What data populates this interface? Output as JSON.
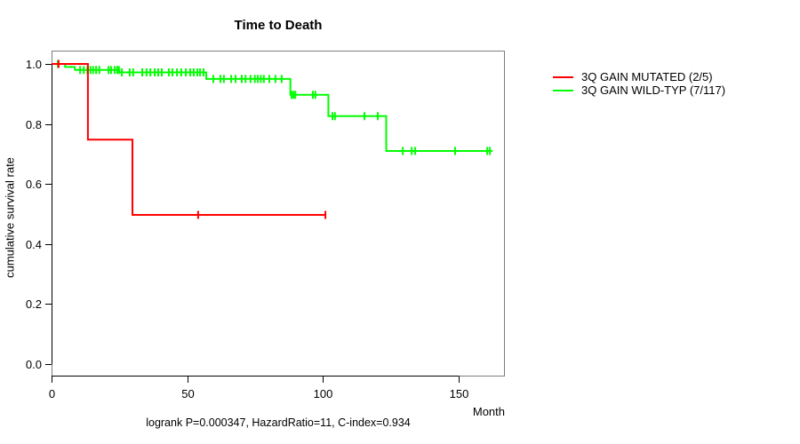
{
  "chart_data": {
    "type": "line",
    "subtype": "kaplan-meier-step",
    "title": "Time to Death",
    "xlabel": "Month",
    "ylabel": "cumulative survival rate",
    "footer": "logrank P=0.000347, HazardRatio=11, C-index=0.934",
    "x_ticks": [
      "0",
      "50",
      "100",
      "150"
    ],
    "x_tick_values": [
      0,
      50,
      100,
      150
    ],
    "y_ticks": [
      "0.0",
      "0.2",
      "0.4",
      "0.6",
      "0.8",
      "1.0"
    ],
    "y_tick_values": [
      0.0,
      0.2,
      0.4,
      0.6,
      0.8,
      1.0
    ],
    "xlim": [
      0,
      167
    ],
    "ylim": [
      0.0,
      1.0
    ],
    "grid": false,
    "legend_position": "right-outside",
    "legend": [
      {
        "label": "3Q GAIN MUTATED (2/5)",
        "color": "#ff0000"
      },
      {
        "label": "3Q GAIN WILD-TYP (7/117)",
        "color": "#00ff00"
      }
    ],
    "series": [
      {
        "name": "3Q GAIN MUTATED (2/5)",
        "color": "#ff0000",
        "steps": [
          [
            0,
            1.0
          ],
          [
            13.4,
            0.748
          ],
          [
            29.8,
            0.497
          ]
        ],
        "end": 100.9,
        "censors": [
          [
            2.6,
            1.0
          ],
          [
            54.0,
            0.497
          ],
          [
            100.9,
            0.497
          ]
        ]
      },
      {
        "name": "3Q GAIN WILD-TYP (7/117)",
        "color": "#00ff00",
        "steps": [
          [
            0,
            1.0
          ],
          [
            5.0,
            0.99
          ],
          [
            8.6,
            0.98
          ],
          [
            25.0,
            0.972
          ],
          [
            57.0,
            0.95
          ],
          [
            88.0,
            0.897
          ],
          [
            102.0,
            0.826
          ],
          [
            123.3,
            0.71
          ]
        ],
        "end": 162.5,
        "censors": [
          [
            2.3,
            1.0
          ],
          [
            10.5,
            0.98
          ],
          [
            11.9,
            0.98
          ],
          [
            13.2,
            0.98
          ],
          [
            14.3,
            0.98
          ],
          [
            15.3,
            0.98
          ],
          [
            16.4,
            0.98
          ],
          [
            17.6,
            0.98
          ],
          [
            21.0,
            0.98
          ],
          [
            21.9,
            0.98
          ],
          [
            23.3,
            0.98
          ],
          [
            24.2,
            0.98
          ],
          [
            24.8,
            0.98
          ],
          [
            25.9,
            0.972
          ],
          [
            28.8,
            0.972
          ],
          [
            30.1,
            0.972
          ],
          [
            33.4,
            0.972
          ],
          [
            35.0,
            0.972
          ],
          [
            36.4,
            0.972
          ],
          [
            38.0,
            0.972
          ],
          [
            39.3,
            0.972
          ],
          [
            40.6,
            0.972
          ],
          [
            43.2,
            0.972
          ],
          [
            44.5,
            0.972
          ],
          [
            46.2,
            0.972
          ],
          [
            47.8,
            0.972
          ],
          [
            49.5,
            0.972
          ],
          [
            51.1,
            0.972
          ],
          [
            52.4,
            0.972
          ],
          [
            53.7,
            0.972
          ],
          [
            54.7,
            0.972
          ],
          [
            56.0,
            0.972
          ],
          [
            59.6,
            0.95
          ],
          [
            62.2,
            0.95
          ],
          [
            63.5,
            0.95
          ],
          [
            66.2,
            0.95
          ],
          [
            67.8,
            0.95
          ],
          [
            70.1,
            0.95
          ],
          [
            71.5,
            0.95
          ],
          [
            73.3,
            0.95
          ],
          [
            74.9,
            0.95
          ],
          [
            76.0,
            0.95
          ],
          [
            77.1,
            0.95
          ],
          [
            78.2,
            0.95
          ],
          [
            80.2,
            0.95
          ],
          [
            82.5,
            0.95
          ],
          [
            84.8,
            0.95
          ],
          [
            88.4,
            0.897
          ],
          [
            89.1,
            0.897
          ],
          [
            89.8,
            0.897
          ],
          [
            96.3,
            0.897
          ],
          [
            97.2,
            0.897
          ],
          [
            103.5,
            0.826
          ],
          [
            104.4,
            0.826
          ],
          [
            115.3,
            0.826
          ],
          [
            120.2,
            0.826
          ],
          [
            129.4,
            0.71
          ],
          [
            132.7,
            0.71
          ],
          [
            134.0,
            0.71
          ],
          [
            148.7,
            0.71
          ],
          [
            160.5,
            0.71
          ],
          [
            161.5,
            0.71
          ]
        ]
      }
    ],
    "colors": {
      "axis": "#000000",
      "box": "#7d7d7d",
      "text": "#000000",
      "background": "#ffffff"
    }
  }
}
